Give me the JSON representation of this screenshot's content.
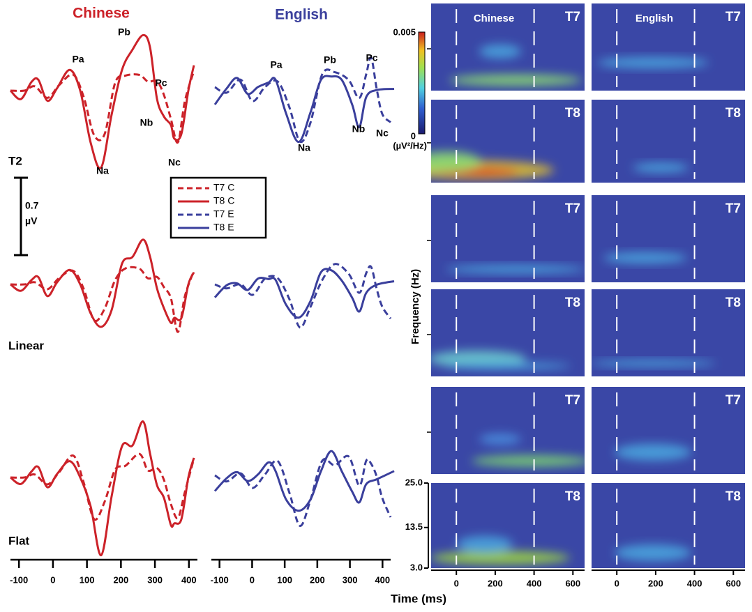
{
  "titles": {
    "chinese": "Chinese",
    "english": "English"
  },
  "row_labels": [
    "T2",
    "Linear",
    "Flat"
  ],
  "peaks_chinese": [
    "Pa",
    "Pb",
    "Pc",
    "Na",
    "Nb",
    "Nc"
  ],
  "peaks_english": [
    "Pa",
    "Pb",
    "Pc",
    "Na",
    "Nb",
    "Nc"
  ],
  "legend": [
    {
      "name": "T7 C",
      "color": "#cc2229",
      "dashed": true
    },
    {
      "name": "T8 C",
      "color": "#cc2229",
      "dashed": false
    },
    {
      "name": "T7 E",
      "color": "#3a3f9c",
      "dashed": true
    },
    {
      "name": "T8 E",
      "color": "#3a3f9c",
      "dashed": false
    }
  ],
  "scale_bar": {
    "value": "0.7",
    "unit": "µV"
  },
  "erp_axis": {
    "xlim": [
      -125,
      425
    ],
    "xticks": [
      -100,
      0,
      100,
      200,
      300,
      400
    ]
  },
  "colorbar": {
    "max": "0.005",
    "min": "0",
    "unit": "(µV²/Hz)"
  },
  "tf_headers": [
    "Chinese",
    "English"
  ],
  "tf_rows": [
    [
      "T7",
      "T7"
    ],
    [
      "T8",
      "T8"
    ],
    [
      "T7",
      "T7"
    ],
    [
      "T8",
      "T8"
    ],
    [
      "T7",
      "T7"
    ],
    [
      "T8",
      "T8"
    ]
  ],
  "tf_xaxis": {
    "label": "Time (ms)",
    "xlim": [
      -130,
      660
    ],
    "xticks": [
      0,
      200,
      400,
      600
    ]
  },
  "tf_yaxis": {
    "label": "Frequency (Hz)",
    "ylim": [
      3,
      25
    ],
    "yticks": [
      {
        "value": 3,
        "label": "3.0"
      },
      {
        "value": 13.5,
        "label": "13.5"
      },
      {
        "value": 25,
        "label": "25.0"
      }
    ]
  }
}
